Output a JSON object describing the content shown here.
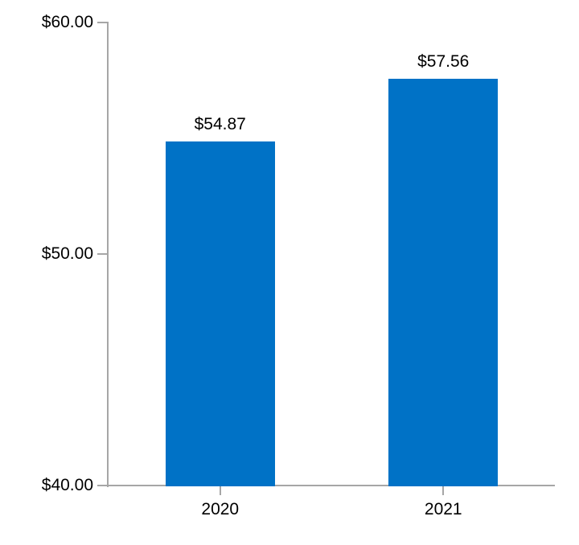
{
  "chart_data": {
    "type": "bar",
    "title": "",
    "categories": [
      "2020",
      "2021"
    ],
    "values": [
      54.87,
      57.56
    ],
    "data_labels": [
      "$54.87",
      "$57.56"
    ],
    "ylim": [
      40,
      60
    ],
    "yticks": [
      40,
      50,
      60
    ],
    "ytick_labels": [
      "$40.00",
      "$50.00",
      "$60.00"
    ],
    "xlabel": "",
    "ylabel": "",
    "grid": "off",
    "legend": "none",
    "colors": {
      "bar": "#0072C6",
      "axis": "#A6A6A6",
      "text": "#000000",
      "background": "#FFFFFF"
    }
  }
}
